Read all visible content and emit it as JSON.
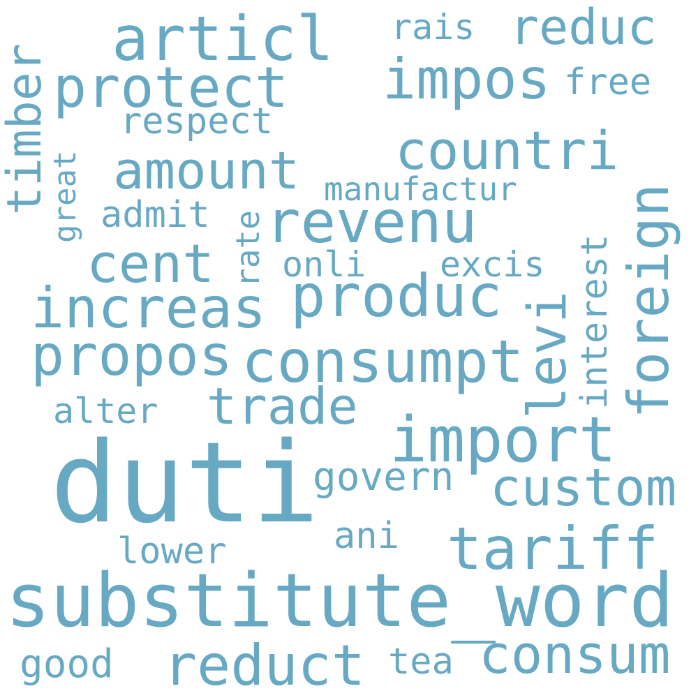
{
  "word_color": "#67a9c3",
  "background_color": "#ffffff",
  "words": {
    "duti": "duti",
    "substitute_word": "substitute_word",
    "articl": "articl",
    "import": "import",
    "protect": "protect",
    "impos": "impos",
    "reduc": "reduc",
    "countri": "countri",
    "amount": "amount",
    "revenu": "revenu",
    "produc": "produc",
    "increas": "increas",
    "propos": "propos",
    "consumpt": "consumpt",
    "trade": "trade",
    "custom": "custom",
    "tariff": "tariff",
    "consum": "consum",
    "reduct": "reduct",
    "cent": "cent",
    "foreign": "foreign",
    "levi": "levi",
    "timber": "timber",
    "interest": "interest",
    "govern": "govern",
    "respect": "respect",
    "manufactur": "manufactur",
    "admit": "admit",
    "onli": "onli",
    "excis": "excis",
    "alter": "alter",
    "lower": "lower",
    "ani": "ani",
    "good": "good",
    "tea": "tea",
    "rais": "rais",
    "free": "free",
    "great": "great",
    "rate": "rate"
  }
}
